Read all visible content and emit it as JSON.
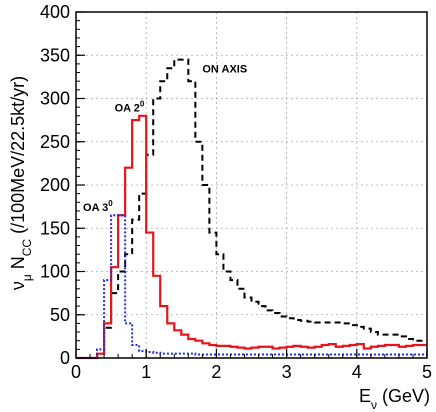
{
  "chart_data": {
    "type": "line",
    "style": "histogram-step",
    "title": "",
    "ylabel_parts": {
      "base": "ν",
      "sub1": "μ",
      "mid": " N",
      "sub2": "CC",
      "tail": " (/100MeV/22.5kt/yr)"
    },
    "xlabel_parts": {
      "base": "E",
      "sub": "ν",
      "tail": " (GeV)"
    },
    "xlim": [
      0,
      5
    ],
    "ylim": [
      0,
      400
    ],
    "x_ticks": [
      "0",
      "1",
      "2",
      "3",
      "4",
      "5"
    ],
    "y_ticks": [
      "0",
      "50",
      "100",
      "150",
      "200",
      "250",
      "300",
      "350",
      "400"
    ],
    "grid": true,
    "bin_width": 0.1,
    "x": [
      0.0,
      0.1,
      0.2,
      0.3,
      0.4,
      0.5,
      0.6,
      0.7,
      0.8,
      0.9,
      1.0,
      1.1,
      1.2,
      1.3,
      1.4,
      1.5,
      1.6,
      1.7,
      1.8,
      1.9,
      2.0,
      2.1,
      2.2,
      2.3,
      2.4,
      2.5,
      2.6,
      2.7,
      2.8,
      2.9,
      3.0,
      3.1,
      3.2,
      3.3,
      3.4,
      3.5,
      3.6,
      3.7,
      3.8,
      3.9,
      4.0,
      4.1,
      4.2,
      4.3,
      4.4,
      4.5,
      4.6,
      4.7,
      4.8,
      4.9
    ],
    "series": [
      {
        "label": "ON AXIS",
        "color": "#000000",
        "dash": "6 4",
        "values": [
          0,
          0,
          0,
          5,
          35,
          75,
          100,
          120,
          160,
          190,
          235,
          300,
          320,
          335,
          345,
          345,
          320,
          250,
          200,
          145,
          120,
          100,
          90,
          80,
          70,
          65,
          60,
          55,
          52,
          48,
          46,
          44,
          43,
          42,
          41,
          41,
          41,
          41,
          40,
          38,
          36,
          34,
          30,
          27,
          27,
          27,
          25,
          22,
          20,
          20
        ]
      },
      {
        "label": "OA 2°",
        "color": "#e8141a",
        "dash": "",
        "values": [
          0,
          0,
          0,
          5,
          40,
          105,
          165,
          220,
          275,
          280,
          145,
          95,
          60,
          40,
          32,
          27,
          22,
          20,
          17,
          15,
          14,
          14,
          13,
          12,
          11,
          12,
          13,
          13,
          11,
          12,
          13,
          14,
          13,
          12,
          13,
          15,
          16,
          13,
          14,
          15,
          16,
          11,
          13,
          14,
          15,
          15,
          13,
          14,
          15,
          15
        ]
      },
      {
        "label": "OA 3°",
        "color": "#1f2ee0",
        "dash": "2 2",
        "values": [
          0,
          0,
          0,
          10,
          90,
          165,
          165,
          40,
          15,
          8,
          7,
          6,
          5,
          5,
          5,
          5,
          5,
          4,
          4,
          4,
          4,
          4,
          4,
          4,
          4,
          4,
          4,
          4,
          4,
          4,
          4,
          4,
          4,
          4,
          4,
          4,
          4,
          4,
          4,
          4,
          4,
          4,
          4,
          4,
          4,
          4,
          4,
          4,
          4,
          4
        ]
      }
    ],
    "annotations": [
      {
        "text_base": "ON AXIS",
        "text_sup": "",
        "at": [
          1.8,
          330
        ]
      },
      {
        "text_base": "OA 2",
        "text_sup": "0",
        "at": [
          0.55,
          285
        ]
      },
      {
        "text_base": "OA 3",
        "text_sup": "0",
        "at": [
          0.1,
          170
        ]
      }
    ]
  }
}
